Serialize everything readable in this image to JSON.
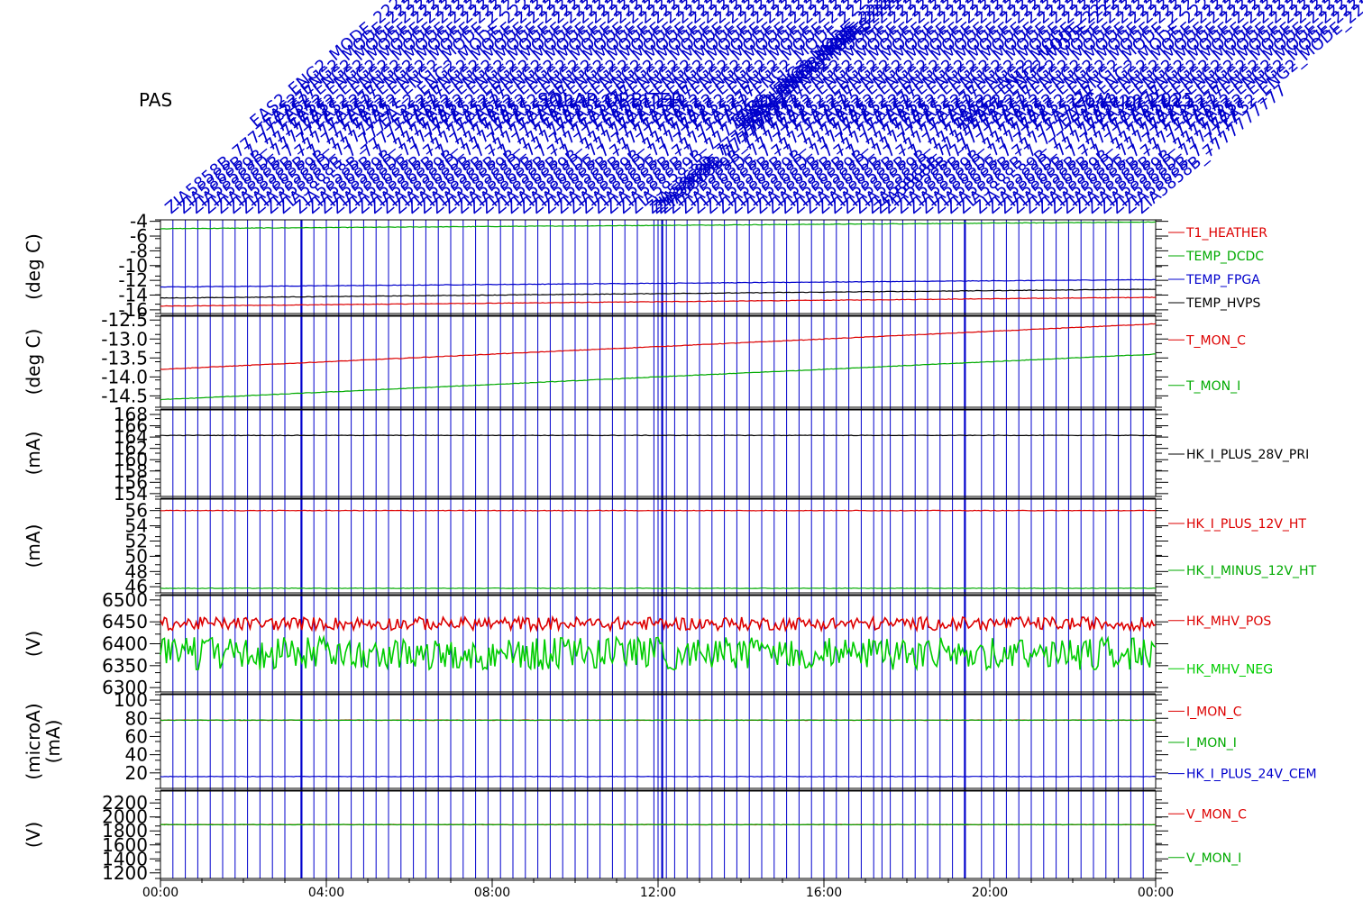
{
  "header": {
    "left_label": "PAS",
    "center_label": "SOLAR ORBITER",
    "right_label": "26/Aug/ 2025"
  },
  "colors": {
    "axis": "#000000",
    "event": "#0000cc",
    "red": "#dd0000",
    "green": "#00aa00",
    "green_bright": "#00cc00",
    "blue": "#0000cc",
    "black": "#000000"
  },
  "time_axis": {
    "ticks": [
      "00:00",
      "04:00",
      "08:00",
      "12:00",
      "16:00",
      "20:00",
      "00:00"
    ]
  },
  "events": {
    "hours": [
      0.3,
      0.6,
      0.9,
      1.2,
      1.5,
      1.8,
      2.1,
      2.4,
      2.7,
      3.0,
      3.4,
      3.7,
      4.0,
      4.3,
      4.6,
      4.9,
      5.2,
      5.5,
      5.8,
      6.1,
      6.4,
      6.7,
      7.0,
      7.3,
      7.6,
      7.9,
      8.2,
      8.5,
      8.8,
      9.1,
      9.4,
      9.7,
      10.0,
      10.3,
      10.6,
      10.9,
      11.2,
      11.5,
      11.9,
      12.0,
      12.1,
      12.2,
      12.4,
      12.7,
      13.0,
      13.3,
      13.6,
      13.9,
      14.2,
      14.5,
      14.8,
      15.1,
      15.4,
      15.7,
      16.0,
      16.3,
      16.6,
      16.9,
      17.2,
      17.4,
      17.6,
      17.9,
      18.2,
      18.5,
      18.8,
      19.1,
      19.4,
      19.8,
      20.1,
      20.4,
      20.7,
      21.0,
      21.3,
      21.6,
      21.9,
      22.2,
      22.5,
      22.8,
      23.1,
      23.4,
      23.7
    ],
    "labels": [
      "ZIA5858B_7777777777",
      "ZIA5868B_7_777777",
      "ZIA58589B_7777777",
      "ZIA5868D_77777777",
      "ZIA5868B_7_7777"
    ],
    "mode_labels": [
      "EAS2_ENG2_MODE",
      "EAS2_ENG2_MODE",
      "EAS2_ENG2_MODE",
      "EAS2_ENG2_MODE",
      "EAS2_ENG2_MODE"
    ],
    "dense_labels": [
      "222222222",
      "222222",
      "222222",
      "222222"
    ],
    "special_labels": [
      "SOLAR ORBITER",
      "CEM CURRENTS"
    ]
  },
  "chart_data": [
    {
      "type": "line",
      "ylabel": "(deg C)",
      "ylim": [
        -16.5,
        -3.8
      ],
      "yticks": [
        "-4",
        "-6",
        "-8",
        "-10",
        "-12",
        "-14",
        "-16"
      ],
      "series": [
        {
          "name": "T1_HEATHER",
          "color": "#dd0000",
          "x": [
            0,
            24
          ],
          "values": [
            -15.5,
            -14.3
          ]
        },
        {
          "name": "TEMP_DCDC",
          "color": "#00aa00",
          "x": [
            0,
            24
          ],
          "values": [
            -5.0,
            -4.1
          ]
        },
        {
          "name": "TEMP_FPGA",
          "color": "#0000cc",
          "x": [
            0,
            24
          ],
          "values": [
            -12.9,
            -11.9
          ]
        },
        {
          "name": "TEMP_HVPS",
          "color": "#000000",
          "x": [
            0,
            24
          ],
          "values": [
            -14.4,
            -13.2
          ]
        }
      ]
    },
    {
      "type": "line",
      "ylabel": "(deg C)",
      "ylim": [
        -14.8,
        -12.4
      ],
      "yticks": [
        "-12.5",
        "-13.0",
        "-13.5",
        "-14.0",
        "-14.5"
      ],
      "series": [
        {
          "name": "T_MON_C",
          "color": "#dd0000",
          "x": [
            0,
            24
          ],
          "values": [
            -13.8,
            -12.6
          ]
        },
        {
          "name": "T_MON_I",
          "color": "#00aa00",
          "x": [
            0,
            24
          ],
          "values": [
            -14.6,
            -13.4
          ]
        }
      ]
    },
    {
      "type": "line",
      "ylabel": "(mA)",
      "ylim": [
        153.5,
        168.8
      ],
      "yticks": [
        "168",
        "166",
        "164",
        "162",
        "160",
        "158",
        "156",
        "154"
      ],
      "series": [
        {
          "name": "HK_I_PLUS_28V_PRI",
          "color": "#000000",
          "x": [
            0,
            24
          ],
          "values": [
            164.3,
            164.3
          ]
        }
      ]
    },
    {
      "type": "line",
      "ylabel": "(mA)",
      "ylim": [
        45.2,
        57.5
      ],
      "yticks": [
        "56",
        "54",
        "52",
        "50",
        "48",
        "46"
      ],
      "series": [
        {
          "name": "HK_I_PLUS_12V_HT",
          "color": "#dd0000",
          "x": [
            0,
            24
          ],
          "values": [
            56.0,
            56.0
          ]
        },
        {
          "name": "HK_I_MINUS_12V_HT",
          "color": "#00aa00",
          "x": [
            0,
            24
          ],
          "values": [
            45.8,
            45.8
          ]
        }
      ]
    },
    {
      "type": "line",
      "ylabel": "(V)",
      "ylim": [
        6290,
        6510
      ],
      "yticks": [
        "6500",
        "6450",
        "6400",
        "6350",
        "6300"
      ],
      "series": [
        {
          "name": "HK_MHV_POS",
          "color": "#dd0000",
          "x": [
            0,
            24
          ],
          "values": [
            6440,
            6440
          ]
        },
        {
          "name": "HK_MHV_NEG",
          "color": "#00cc00",
          "x": [
            0,
            24
          ],
          "values": [
            6390,
            6390
          ]
        }
      ]
    },
    {
      "type": "line",
      "ylabel": "(microA)",
      "ylabel2": "(mA)",
      "ylim": [
        3,
        106
      ],
      "yticks": [
        "100",
        "80",
        "60",
        "40",
        "20"
      ],
      "series": [
        {
          "name": "I_MON_C",
          "color": "#dd0000",
          "x": [
            0,
            24
          ],
          "values": [
            78,
            78
          ]
        },
        {
          "name": "I_MON_I",
          "color": "#00aa00",
          "x": [
            0,
            24
          ],
          "values": [
            78,
            78
          ]
        },
        {
          "name": "HK_I_PLUS_24V_CEM",
          "color": "#0000cc",
          "x": [
            0,
            24
          ],
          "values": [
            16,
            16
          ]
        }
      ]
    },
    {
      "type": "line",
      "ylabel": "(V)",
      "ylim": [
        1120,
        2370
      ],
      "yticks": [
        "2200",
        "2000",
        "1800",
        "1600",
        "1400",
        "1200"
      ],
      "series": [
        {
          "name": "V_MON_C",
          "color": "#dd0000",
          "x": [
            0,
            24
          ],
          "values": [
            1890,
            1890
          ]
        },
        {
          "name": "V_MON_I",
          "color": "#00aa00",
          "x": [
            0,
            24
          ],
          "values": [
            1890,
            1890
          ]
        }
      ]
    }
  ]
}
